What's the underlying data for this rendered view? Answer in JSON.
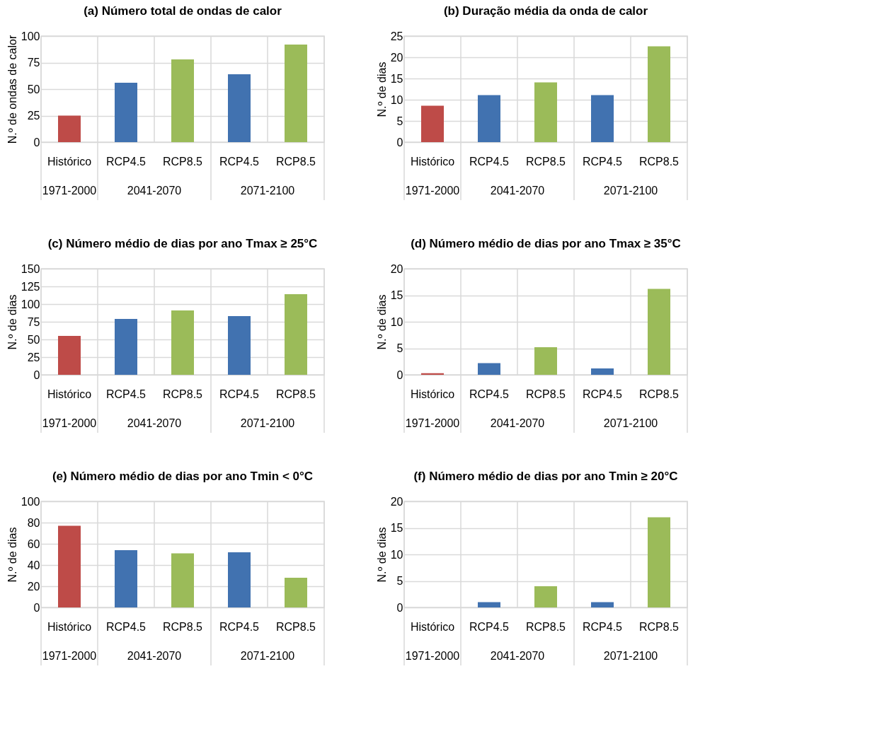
{
  "chart_data": [
    {
      "type": "bar",
      "title": "(a) Número total de ondas de calor",
      "ylabel": "N.º de ondas de calor",
      "categories": [
        "Histórico",
        "RCP4.5",
        "RCP8.5",
        "RCP4.5",
        "RCP8.5"
      ],
      "values": [
        25,
        56,
        78,
        64,
        92
      ],
      "colors": [
        "#be4b48",
        "#4172b0",
        "#9bbb59",
        "#4172b0",
        "#9bbb59"
      ],
      "ylim": [
        0,
        100
      ],
      "yticks": [
        0,
        25,
        50,
        75,
        100
      ],
      "grid": true,
      "annotations": [
        "1971-2000",
        "2041-2070",
        "2071-2100"
      ]
    },
    {
      "type": "bar",
      "title": "(b) Duração média da onda de calor",
      "ylabel": "N.º de dias",
      "categories": [
        "Histórico",
        "RCP4.5",
        "RCP8.5",
        "RCP4.5",
        "RCP8.5"
      ],
      "values": [
        8.6,
        11.1,
        14.1,
        11.1,
        22.6
      ],
      "colors": [
        "#be4b48",
        "#4172b0",
        "#9bbb59",
        "#4172b0",
        "#9bbb59"
      ],
      "ylim": [
        0,
        25
      ],
      "yticks": [
        0,
        5,
        10,
        15,
        20,
        25
      ],
      "grid": true,
      "annotations": [
        "1971-2000",
        "2041-2070",
        "2071-2100"
      ]
    },
    {
      "type": "bar",
      "title": "(c) Número médio de dias por ano Tmax ≥ 25°C",
      "ylabel": "N.º de dias",
      "categories": [
        "Histórico",
        "RCP4.5",
        "RCP8.5",
        "RCP4.5",
        "RCP8.5"
      ],
      "values": [
        55,
        79,
        91,
        83,
        114
      ],
      "colors": [
        "#be4b48",
        "#4172b0",
        "#9bbb59",
        "#4172b0",
        "#9bbb59"
      ],
      "ylim": [
        0,
        150
      ],
      "yticks": [
        0,
        25,
        50,
        75,
        100,
        125,
        150
      ],
      "grid": true,
      "annotations": [
        "1971-2000",
        "2041-2070",
        "2071-2100"
      ]
    },
    {
      "type": "bar",
      "title": "(d) Número médio de dias por ano Tmax ≥ 35°C",
      "ylabel": "N.º de dias",
      "categories": [
        "Histórico",
        "RCP4.5",
        "RCP8.5",
        "RCP4.5",
        "RCP8.5"
      ],
      "values": [
        0.3,
        2.2,
        5.2,
        1.2,
        16.2
      ],
      "colors": [
        "#be4b48",
        "#4172b0",
        "#9bbb59",
        "#4172b0",
        "#9bbb59"
      ],
      "ylim": [
        0,
        20
      ],
      "yticks": [
        0,
        5,
        10,
        15,
        20
      ],
      "grid": true,
      "annotations": [
        "1971-2000",
        "2041-2070",
        "2071-2100"
      ]
    },
    {
      "type": "bar",
      "title": "(e) Número médio de dias por ano Tmin < 0°C",
      "ylabel": "N.º de dias",
      "categories": [
        "Histórico",
        "RCP4.5",
        "RCP8.5",
        "RCP4.5",
        "RCP8.5"
      ],
      "values": [
        77,
        54,
        51,
        52,
        28
      ],
      "colors": [
        "#be4b48",
        "#4172b0",
        "#9bbb59",
        "#4172b0",
        "#9bbb59"
      ],
      "ylim": [
        0,
        100
      ],
      "yticks": [
        0,
        20,
        40,
        60,
        80,
        100
      ],
      "grid": true,
      "annotations": [
        "1971-2000",
        "2041-2070",
        "2071-2100"
      ]
    },
    {
      "type": "bar",
      "title": "(f) Número médio de dias por ano Tmin ≥ 20°C",
      "ylabel": "N.º de dias",
      "categories": [
        "Histórico",
        "RCP4.5",
        "RCP8.5",
        "RCP4.5",
        "RCP8.5"
      ],
      "values": [
        0,
        1,
        4,
        1,
        17
      ],
      "colors": [
        "#be4b48",
        "#4172b0",
        "#9bbb59",
        "#4172b0",
        "#9bbb59"
      ],
      "ylim": [
        0,
        20
      ],
      "yticks": [
        0,
        5,
        10,
        15,
        20
      ],
      "grid": true,
      "annotations": [
        "1971-2000",
        "2041-2070",
        "2071-2100"
      ]
    }
  ]
}
